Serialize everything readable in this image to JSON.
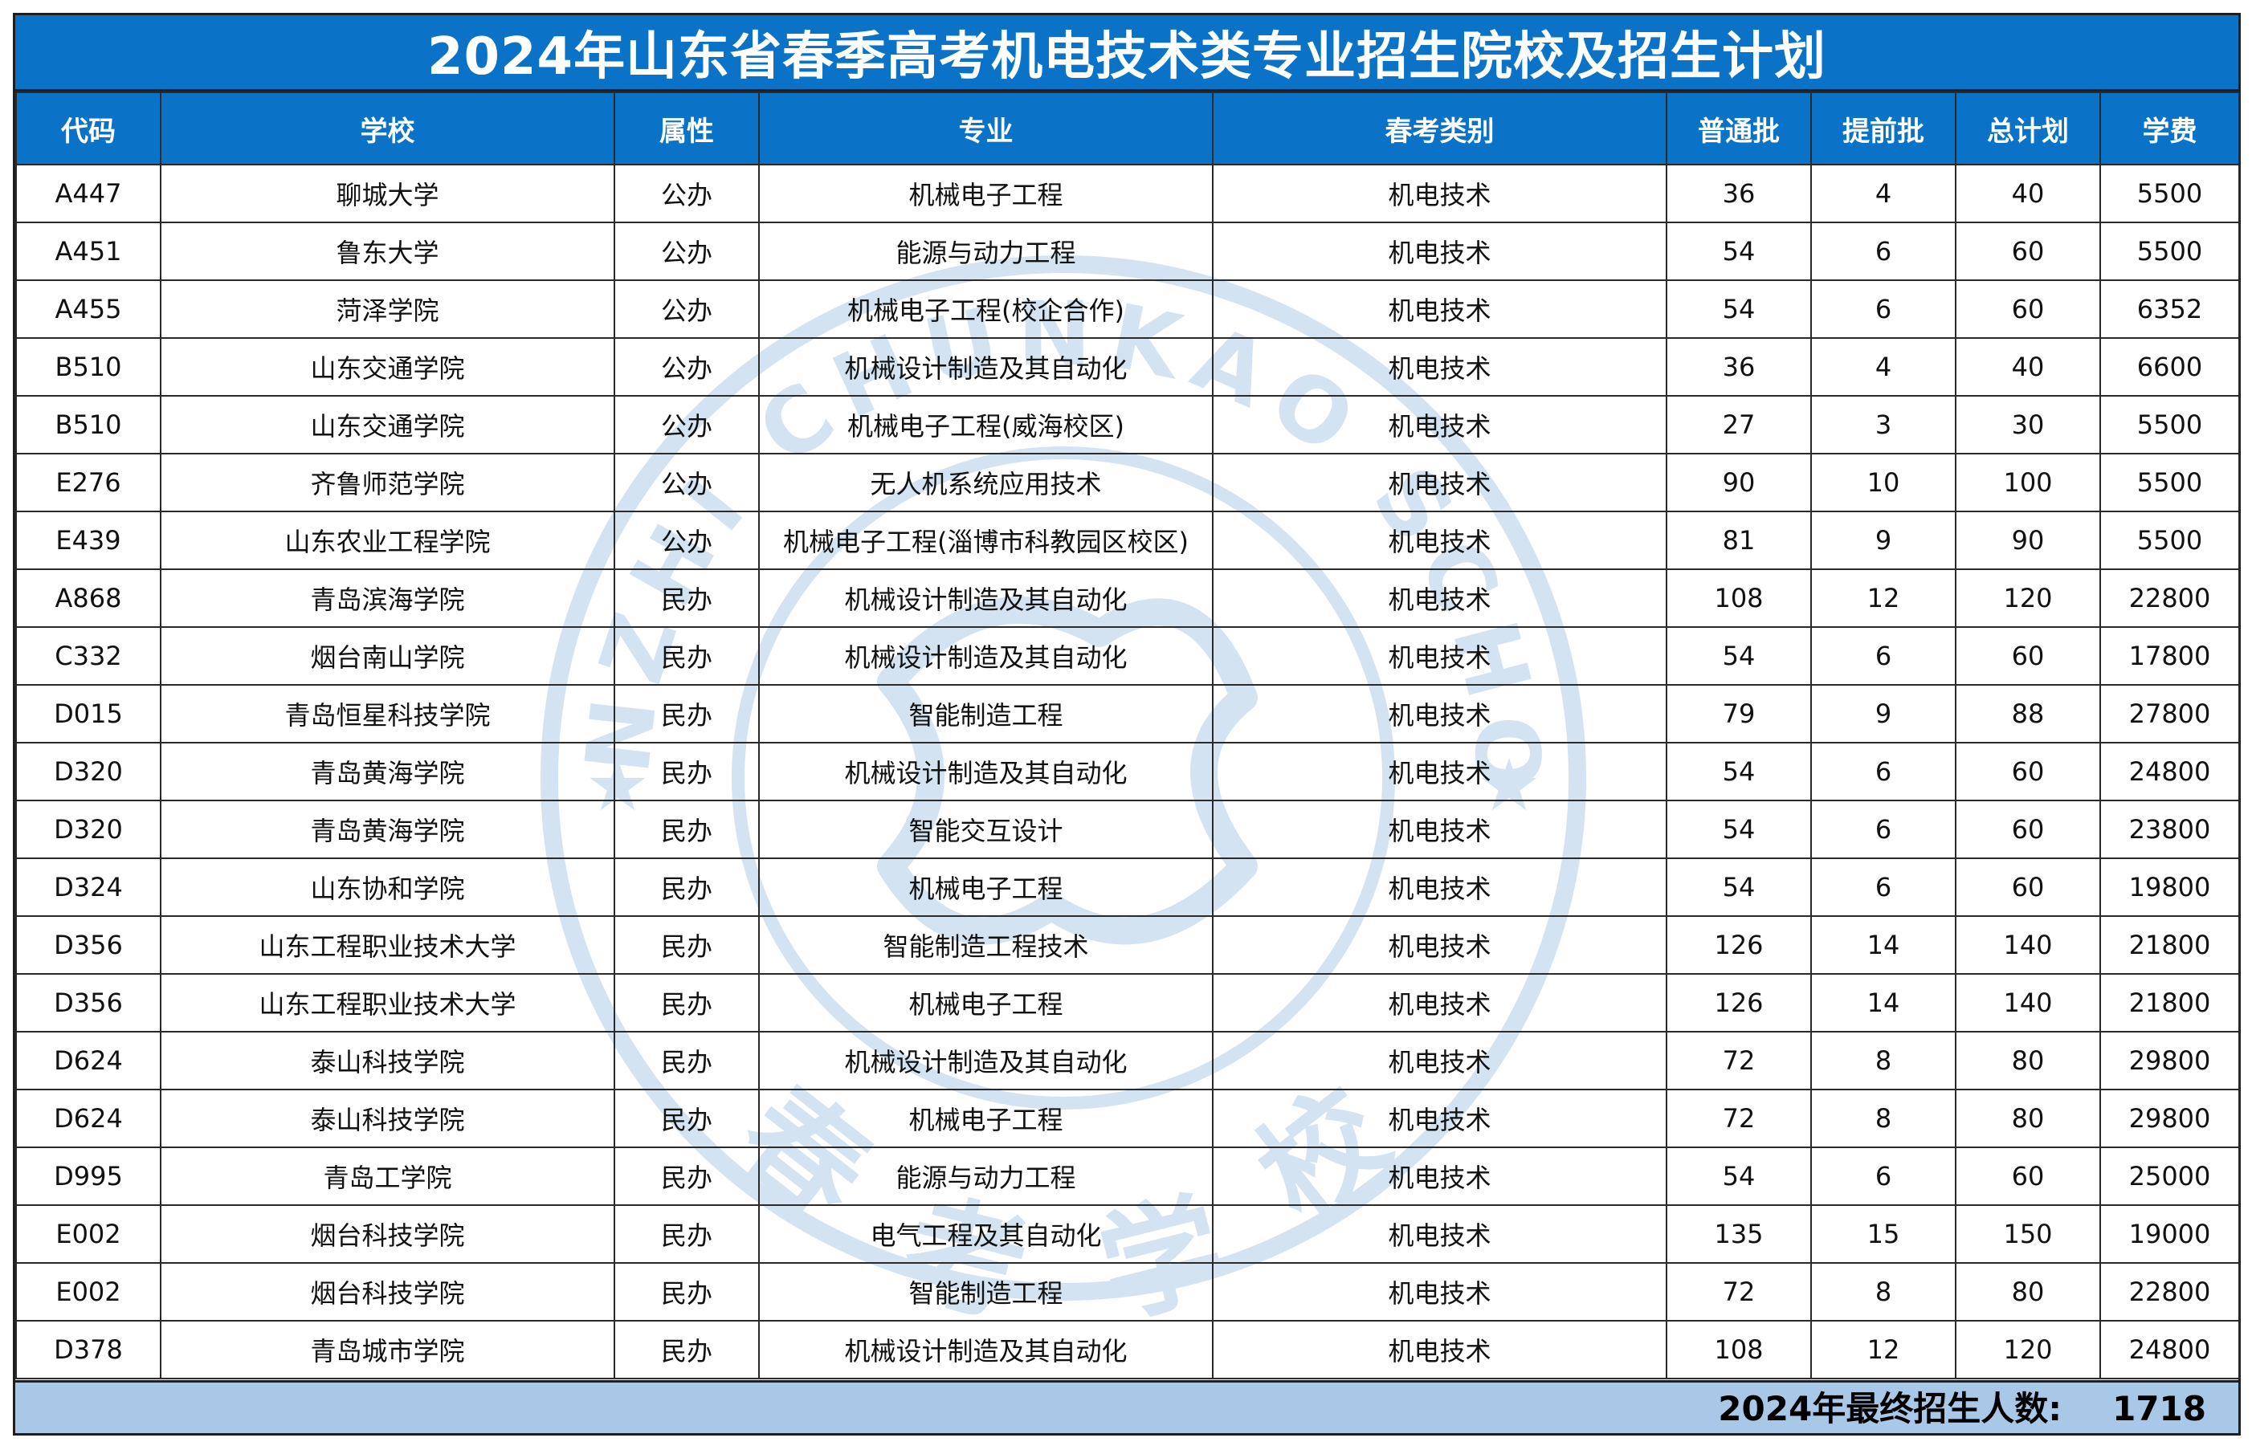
{
  "title": "2024年山东省春季高考机电技术类专业招生院校及招生计划",
  "colors": {
    "header_bg": "#0a72c7",
    "footer_bg": "#a9c8e8",
    "watermark": "#c9dced"
  },
  "watermark_text": "WANZHI CHUNKAO SCHOOL",
  "watermark_glyphs": [
    "春",
    "考",
    "学",
    "校"
  ],
  "columns": [
    "代码",
    "学校",
    "属性",
    "专业",
    "春考类别",
    "普通批",
    "提前批",
    "总计划",
    "学费"
  ],
  "rows": [
    [
      "A447",
      "聊城大学",
      "公办",
      "机械电子工程",
      "机电技术",
      "36",
      "4",
      "40",
      "5500"
    ],
    [
      "A451",
      "鲁东大学",
      "公办",
      "能源与动力工程",
      "机电技术",
      "54",
      "6",
      "60",
      "5500"
    ],
    [
      "A455",
      "菏泽学院",
      "公办",
      "机械电子工程(校企合作)",
      "机电技术",
      "54",
      "6",
      "60",
      "6352"
    ],
    [
      "B510",
      "山东交通学院",
      "公办",
      "机械设计制造及其自动化",
      "机电技术",
      "36",
      "4",
      "40",
      "6600"
    ],
    [
      "B510",
      "山东交通学院",
      "公办",
      "机械电子工程(威海校区)",
      "机电技术",
      "27",
      "3",
      "30",
      "5500"
    ],
    [
      "E276",
      "齐鲁师范学院",
      "公办",
      "无人机系统应用技术",
      "机电技术",
      "90",
      "10",
      "100",
      "5500"
    ],
    [
      "E439",
      "山东农业工程学院",
      "公办",
      "机械电子工程(淄博市科教园区校区)",
      "机电技术",
      "81",
      "9",
      "90",
      "5500"
    ],
    [
      "A868",
      "青岛滨海学院",
      "民办",
      "机械设计制造及其自动化",
      "机电技术",
      "108",
      "12",
      "120",
      "22800"
    ],
    [
      "C332",
      "烟台南山学院",
      "民办",
      "机械设计制造及其自动化",
      "机电技术",
      "54",
      "6",
      "60",
      "17800"
    ],
    [
      "D015",
      "青岛恒星科技学院",
      "民办",
      "智能制造工程",
      "机电技术",
      "79",
      "9",
      "88",
      "27800"
    ],
    [
      "D320",
      "青岛黄海学院",
      "民办",
      "机械设计制造及其自动化",
      "机电技术",
      "54",
      "6",
      "60",
      "24800"
    ],
    [
      "D320",
      "青岛黄海学院",
      "民办",
      "智能交互设计",
      "机电技术",
      "54",
      "6",
      "60",
      "23800"
    ],
    [
      "D324",
      "山东协和学院",
      "民办",
      "机械电子工程",
      "机电技术",
      "54",
      "6",
      "60",
      "19800"
    ],
    [
      "D356",
      "山东工程职业技术大学",
      "民办",
      "智能制造工程技术",
      "机电技术",
      "126",
      "14",
      "140",
      "21800"
    ],
    [
      "D356",
      "山东工程职业技术大学",
      "民办",
      "机械电子工程",
      "机电技术",
      "126",
      "14",
      "140",
      "21800"
    ],
    [
      "D624",
      "泰山科技学院",
      "民办",
      "机械设计制造及其自动化",
      "机电技术",
      "72",
      "8",
      "80",
      "29800"
    ],
    [
      "D624",
      "泰山科技学院",
      "民办",
      "机械电子工程",
      "机电技术",
      "72",
      "8",
      "80",
      "29800"
    ],
    [
      "D995",
      "青岛工学院",
      "民办",
      "能源与动力工程",
      "机电技术",
      "54",
      "6",
      "60",
      "25000"
    ],
    [
      "E002",
      "烟台科技学院",
      "民办",
      "电气工程及其自动化",
      "机电技术",
      "135",
      "15",
      "150",
      "19000"
    ],
    [
      "E002",
      "烟台科技学院",
      "民办",
      "智能制造工程",
      "机电技术",
      "72",
      "8",
      "80",
      "22800"
    ],
    [
      "D378",
      "青岛城市学院",
      "民办",
      "机械设计制造及其自动化",
      "机电技术",
      "108",
      "12",
      "120",
      "24800"
    ]
  ],
  "footer": {
    "label": "2024年最终招生人数:",
    "value": "1718"
  }
}
